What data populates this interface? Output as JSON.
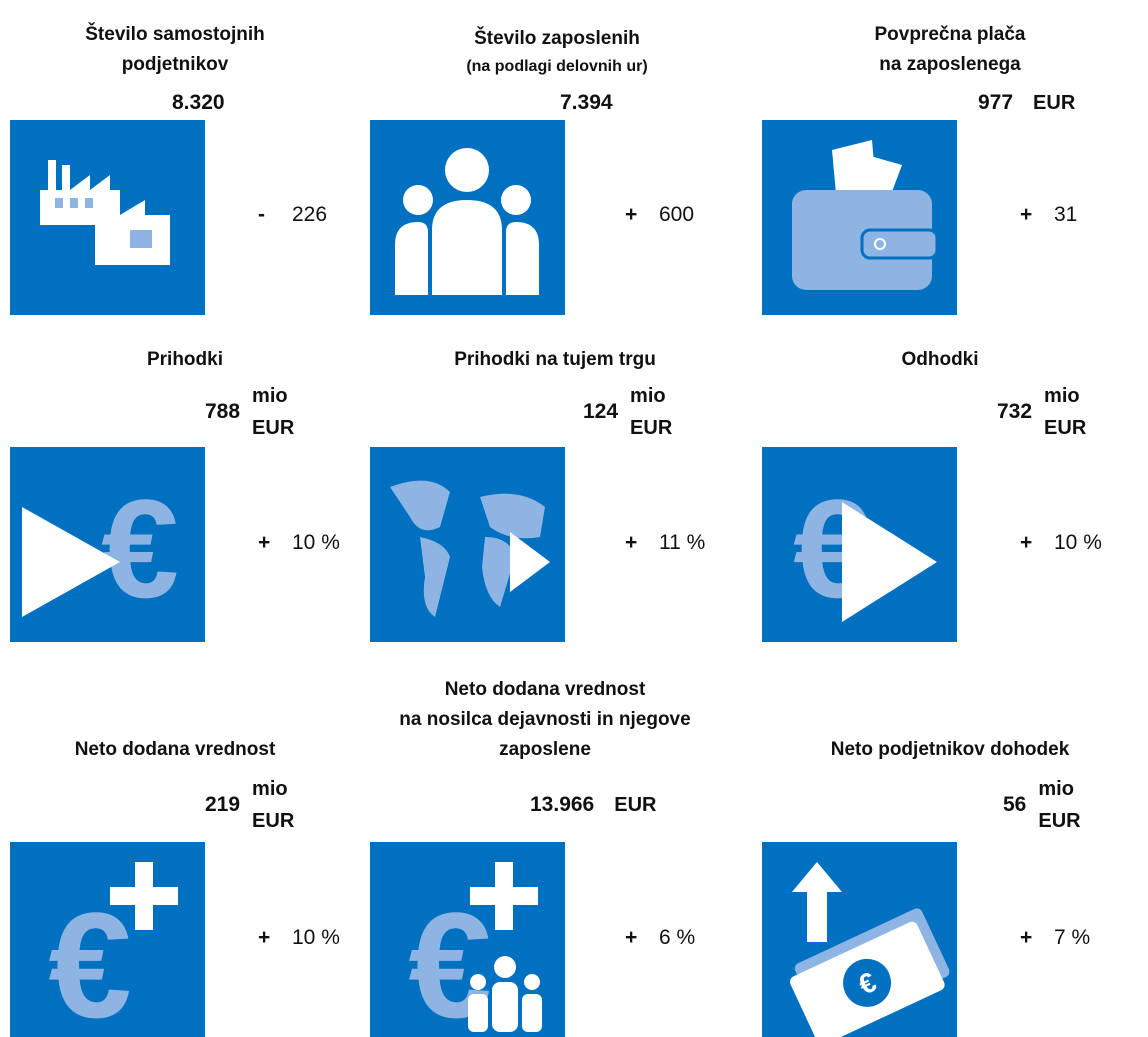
{
  "cards": [
    {
      "title": [
        "Število samostojnih",
        "podjetnikov"
      ],
      "value": "8.320",
      "unit": [],
      "sign": "-",
      "change": "226"
    },
    {
      "title": [
        "Število zaposlenih"
      ],
      "subtitle": "(na podlagi delovnih ur)",
      "value": "7.394",
      "unit": [],
      "sign": "+",
      "change": "600"
    },
    {
      "title": [
        "Povprečna plača",
        "na zaposlenega"
      ],
      "value": "977",
      "unit": [
        "EUR"
      ],
      "sign": "+",
      "change": "31"
    },
    {
      "title": [
        "Prihodki"
      ],
      "value": "788",
      "unit": [
        "mio",
        "EUR"
      ],
      "sign": "+",
      "change": "10 %"
    },
    {
      "title": [
        "Prihodki na tujem trgu"
      ],
      "value": "124",
      "unit": [
        "mio",
        "EUR"
      ],
      "sign": "+",
      "change": "11 %"
    },
    {
      "title": [
        "Odhodki"
      ],
      "value": "732",
      "unit": [
        "mio",
        "EUR"
      ],
      "sign": "+",
      "change": "10 %"
    },
    {
      "title": [
        "Neto dodana vrednost"
      ],
      "value": "219",
      "unit": [
        "mio",
        "EUR"
      ],
      "sign": "+",
      "change": "10 %"
    },
    {
      "title": [
        "Neto dodana vrednost",
        "na nosilca dejavnosti in njegove",
        "zaposlene"
      ],
      "value": "13.966",
      "unit": [
        "EUR"
      ],
      "sign": "+",
      "change": "6 %"
    },
    {
      "title": [
        "Neto podjetnikov dohodek"
      ],
      "value": "56",
      "unit": [
        "mio",
        "EUR"
      ],
      "sign": "+",
      "change": "7 %"
    }
  ]
}
